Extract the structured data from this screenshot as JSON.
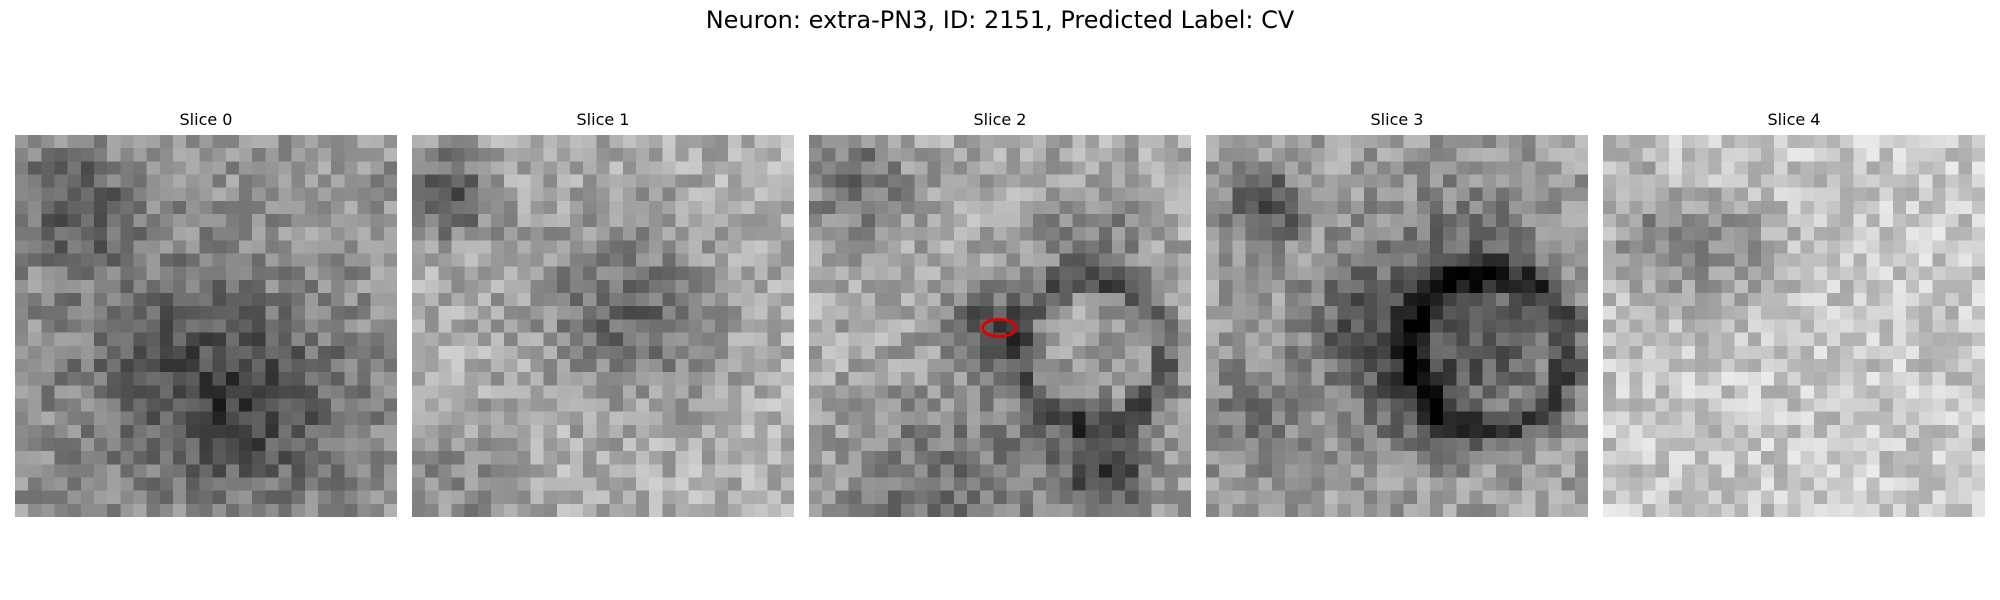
{
  "figure": {
    "title": "Neuron: extra-PN3, ID: 2151, Predicted Label: CV"
  },
  "slices": [
    {
      "label": "Slice 0"
    },
    {
      "label": "Slice 1"
    },
    {
      "label": "Slice 2",
      "has_marker": true
    },
    {
      "label": "Slice 3"
    },
    {
      "label": "Slice 4"
    }
  ],
  "colors": {
    "marker": "#e00000",
    "colormap": "gray"
  }
}
